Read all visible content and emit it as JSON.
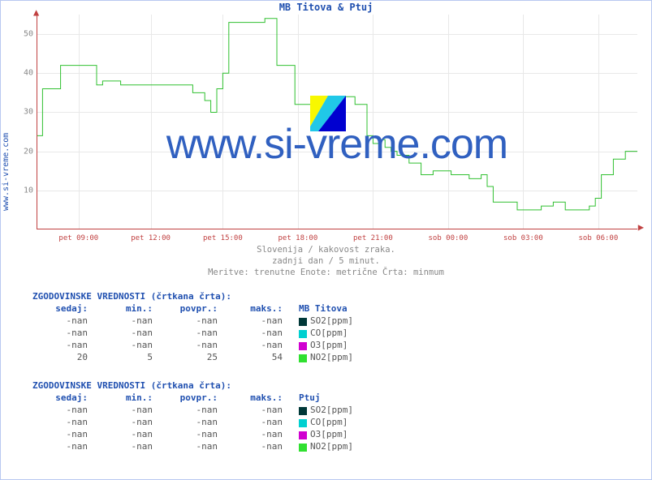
{
  "title": "MB Titova & Ptuj",
  "side_label": "www.si-vreme.com",
  "watermark": "www.si-vreme.com",
  "subtitle1": "Slovenija / kakovost zraka.",
  "subtitle2": "zadnji dan / 5 minut.",
  "subtitle3": "Meritve: trenutne  Enote: metrične  Črta: minmum",
  "chart": {
    "type": "step-line",
    "ylim": [
      0,
      55
    ],
    "yticks": [
      10,
      20,
      30,
      40,
      50
    ],
    "xticks": [
      "pet 09:00",
      "pet 12:00",
      "pet 15:00",
      "pet 18:00",
      "pet 21:00",
      "sob 00:00",
      "sob 03:00",
      "sob 06:00"
    ],
    "xtick_positions_pct": [
      7,
      19,
      31,
      43.5,
      56,
      68.5,
      81,
      93.5
    ],
    "grid_color": "#e8e8e8",
    "axis_color": "#c04040",
    "background_color": "#ffffff",
    "series_color": "#30c030",
    "points": [
      [
        0,
        24
      ],
      [
        1,
        24
      ],
      [
        1,
        36
      ],
      [
        4,
        36
      ],
      [
        4,
        42
      ],
      [
        10,
        42
      ],
      [
        10,
        37
      ],
      [
        11,
        37
      ],
      [
        11,
        38
      ],
      [
        14,
        38
      ],
      [
        14,
        37
      ],
      [
        26,
        37
      ],
      [
        26,
        35
      ],
      [
        28,
        35
      ],
      [
        28,
        33
      ],
      [
        29,
        33
      ],
      [
        29,
        30
      ],
      [
        30,
        30
      ],
      [
        30,
        36
      ],
      [
        31,
        36
      ],
      [
        31,
        40
      ],
      [
        32,
        40
      ],
      [
        32,
        53
      ],
      [
        38,
        53
      ],
      [
        38,
        54
      ],
      [
        40,
        54
      ],
      [
        40,
        42
      ],
      [
        43,
        42
      ],
      [
        43,
        32
      ],
      [
        46,
        32
      ],
      [
        46,
        34
      ],
      [
        53,
        34
      ],
      [
        53,
        32
      ],
      [
        55,
        32
      ],
      [
        55,
        24
      ],
      [
        56,
        24
      ],
      [
        56,
        22
      ],
      [
        57,
        22
      ],
      [
        57,
        23
      ],
      [
        58,
        23
      ],
      [
        58,
        21
      ],
      [
        59,
        21
      ],
      [
        59,
        20
      ],
      [
        60,
        20
      ],
      [
        60,
        19
      ],
      [
        62,
        19
      ],
      [
        62,
        17
      ],
      [
        64,
        17
      ],
      [
        64,
        14
      ],
      [
        66,
        14
      ],
      [
        66,
        15
      ],
      [
        69,
        15
      ],
      [
        69,
        14
      ],
      [
        72,
        14
      ],
      [
        72,
        13
      ],
      [
        74,
        13
      ],
      [
        74,
        14
      ],
      [
        75,
        14
      ],
      [
        75,
        11
      ],
      [
        76,
        11
      ],
      [
        76,
        7
      ],
      [
        80,
        7
      ],
      [
        80,
        5
      ],
      [
        84,
        5
      ],
      [
        84,
        6
      ],
      [
        86,
        6
      ],
      [
        86,
        7
      ],
      [
        88,
        7
      ],
      [
        88,
        5
      ],
      [
        92,
        5
      ],
      [
        92,
        6
      ],
      [
        93,
        6
      ],
      [
        93,
        8
      ],
      [
        94,
        8
      ],
      [
        94,
        14
      ],
      [
        96,
        14
      ],
      [
        96,
        18
      ],
      [
        98,
        18
      ],
      [
        98,
        20
      ],
      [
        100,
        20
      ]
    ]
  },
  "legend1": {
    "header": "ZGODOVINSKE VREDNOSTI (črtkana črta):",
    "columns": [
      "sedaj:",
      "min.:",
      "povpr.:",
      "maks.:"
    ],
    "station": "MB Titova",
    "rows": [
      {
        "vals": [
          "-nan",
          "-nan",
          "-nan",
          "-nan"
        ],
        "color": "#003838",
        "name": "SO2[ppm]"
      },
      {
        "vals": [
          "-nan",
          "-nan",
          "-nan",
          "-nan"
        ],
        "color": "#00d0d0",
        "name": "CO[ppm]"
      },
      {
        "vals": [
          "-nan",
          "-nan",
          "-nan",
          "-nan"
        ],
        "color": "#d000d0",
        "name": "O3[ppm]"
      },
      {
        "vals": [
          "20",
          "5",
          "25",
          "54"
        ],
        "color": "#30e030",
        "name": "NO2[ppm]"
      }
    ]
  },
  "legend2": {
    "header": "ZGODOVINSKE VREDNOSTI (črtkana črta):",
    "columns": [
      "sedaj:",
      "min.:",
      "povpr.:",
      "maks.:"
    ],
    "station": "Ptuj",
    "rows": [
      {
        "vals": [
          "-nan",
          "-nan",
          "-nan",
          "-nan"
        ],
        "color": "#003838",
        "name": "SO2[ppm]"
      },
      {
        "vals": [
          "-nan",
          "-nan",
          "-nan",
          "-nan"
        ],
        "color": "#00d0d0",
        "name": "CO[ppm]"
      },
      {
        "vals": [
          "-nan",
          "-nan",
          "-nan",
          "-nan"
        ],
        "color": "#d000d0",
        "name": "O3[ppm]"
      },
      {
        "vals": [
          "-nan",
          "-nan",
          "-nan",
          "-nan"
        ],
        "color": "#30e030",
        "name": "NO2[ppm]"
      }
    ]
  },
  "wm_icon_colors": {
    "yellow": "#f8f800",
    "cyan": "#20c8e8",
    "blue": "#0000d0"
  }
}
